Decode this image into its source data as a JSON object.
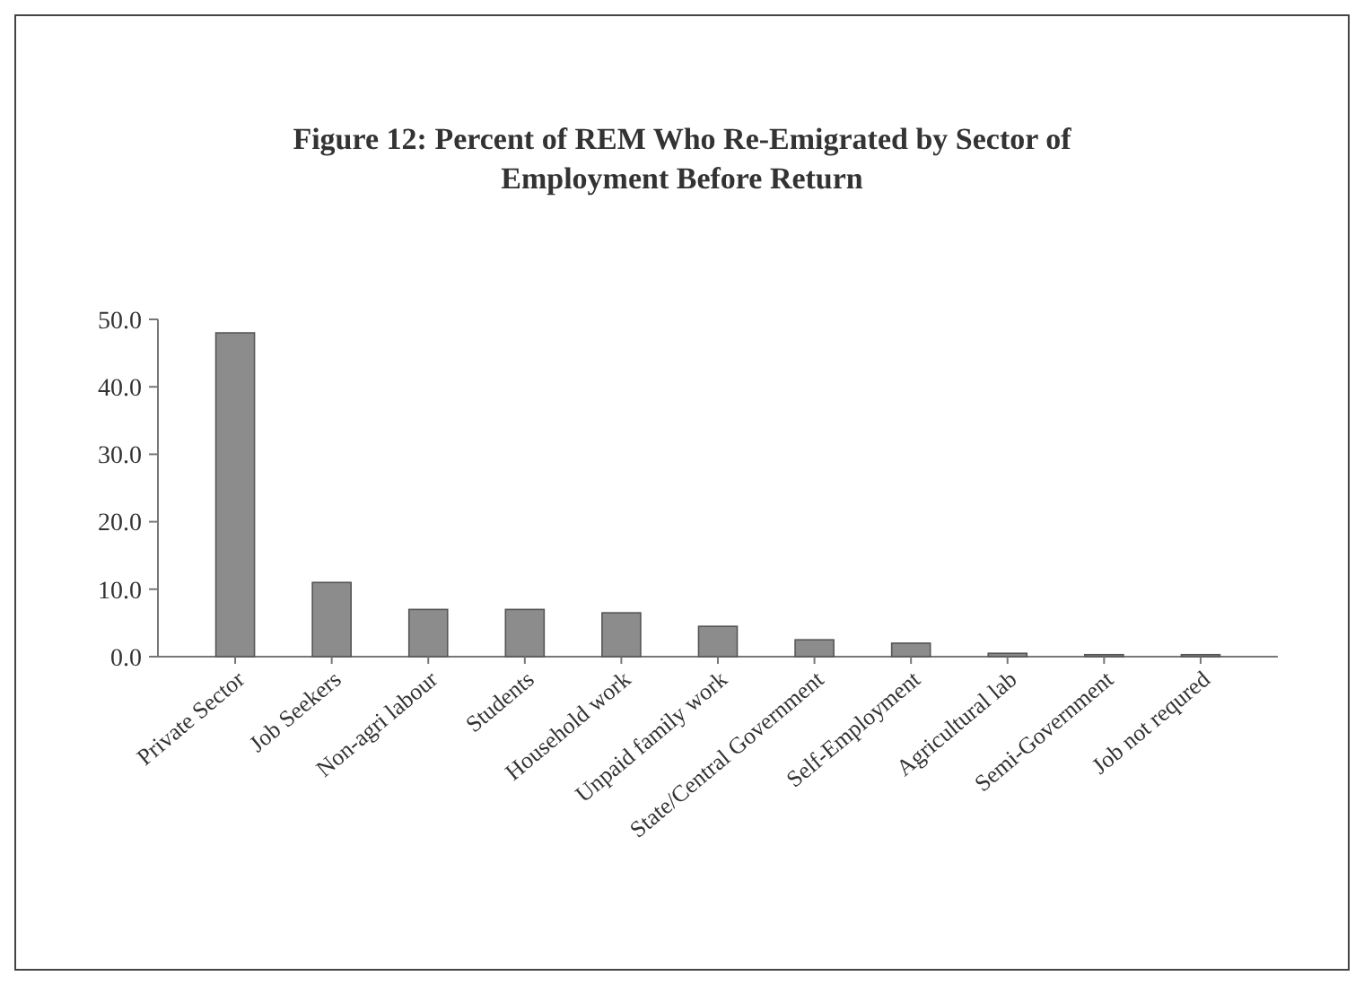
{
  "chart_data": {
    "type": "bar",
    "title": "Figure 12: Percent of REM Who Re-Emigrated by Sector of Employment Before Return",
    "categories": [
      "Private Sector",
      "Job Seekers",
      "Non-agri labour",
      "Students",
      "Household work",
      "Unpaid family work",
      "State/Central Government",
      "Self-Employment",
      "Agricultural lab",
      "Semi-Government",
      "Job not requred"
    ],
    "values": [
      48,
      11,
      7,
      7,
      6.5,
      4.5,
      2.5,
      2,
      0.5,
      0.3,
      0.3
    ],
    "color": "#8c8c8c",
    "ylim": [
      0,
      50
    ],
    "yticks": [
      {
        "value": 0,
        "label": "0.0"
      },
      {
        "value": 10,
        "label": "10.0"
      },
      {
        "value": 20,
        "label": "20.0"
      },
      {
        "value": 30,
        "label": "30.0"
      },
      {
        "value": 40,
        "label": "40.0"
      },
      {
        "value": 50,
        "label": "50.0"
      }
    ],
    "grid": false
  }
}
